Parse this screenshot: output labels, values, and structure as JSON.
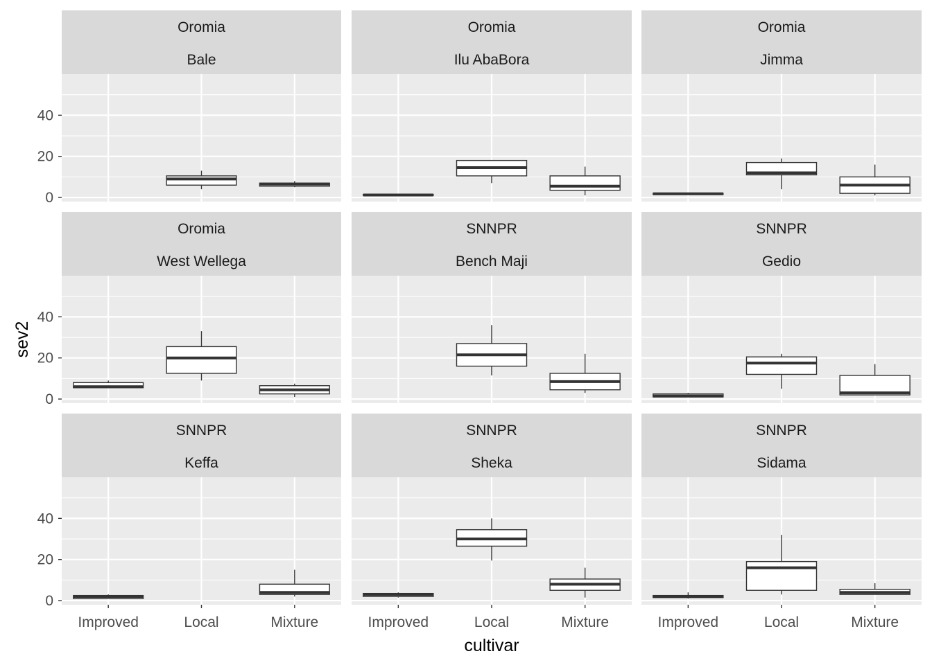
{
  "chart_data": {
    "type": "boxplot",
    "xlabel": "cultivar",
    "ylabel": "sev2",
    "categories": [
      "Improved",
      "Local",
      "Mixture"
    ],
    "y_ticks": [
      0,
      20,
      40
    ],
    "ylim": [
      -2,
      60
    ],
    "grid": true,
    "colors": {
      "panel_bg": "#EBEBEB",
      "strip_bg": "#D9D9D9",
      "grid_major": "#FFFFFF",
      "box_fill": "#FFFFFF",
      "box_line": "#333333",
      "tick_text": "#4D4D4D"
    },
    "panels": [
      {
        "region": "Oromia",
        "zone": "Bale",
        "boxes": [
          {
            "cultivar": "Local",
            "min": 4,
            "q1": 6,
            "median": 9,
            "q3": 10.5,
            "max": 13
          },
          {
            "cultivar": "Mixture",
            "min": 5,
            "q1": 5.5,
            "median": 6.5,
            "q3": 7,
            "max": 8
          }
        ]
      },
      {
        "region": "Oromia",
        "zone": "Ilu AbaBora",
        "boxes": [
          {
            "cultivar": "Improved",
            "min": 1,
            "q1": 1,
            "median": 1.2,
            "q3": 1.5,
            "max": 1.5
          },
          {
            "cultivar": "Local",
            "min": 7,
            "q1": 10.5,
            "median": 14.5,
            "q3": 18,
            "max": 18
          },
          {
            "cultivar": "Mixture",
            "min": 1,
            "q1": 3.5,
            "median": 5.5,
            "q3": 10.5,
            "max": 15
          }
        ]
      },
      {
        "region": "Oromia",
        "zone": "Jimma",
        "boxes": [
          {
            "cultivar": "Improved",
            "min": 1.5,
            "q1": 1.5,
            "median": 1.8,
            "q3": 2,
            "max": 2
          },
          {
            "cultivar": "Local",
            "min": 4,
            "q1": 11,
            "median": 12,
            "q3": 17,
            "max": 19
          },
          {
            "cultivar": "Mixture",
            "min": 1,
            "q1": 2,
            "median": 6,
            "q3": 10,
            "max": 16
          }
        ]
      },
      {
        "region": "Oromia",
        "zone": "West Wellega",
        "boxes": [
          {
            "cultivar": "Improved",
            "min": 5.5,
            "q1": 5.5,
            "median": 6,
            "q3": 8,
            "max": 9
          },
          {
            "cultivar": "Local",
            "min": 9,
            "q1": 12.5,
            "median": 20,
            "q3": 25.5,
            "max": 33
          },
          {
            "cultivar": "Mixture",
            "min": 1,
            "q1": 2.5,
            "median": 4.5,
            "q3": 6.5,
            "max": 7.5
          }
        ]
      },
      {
        "region": "SNNPR",
        "zone": "Bench Maji",
        "boxes": [
          {
            "cultivar": "Local",
            "min": 11.5,
            "q1": 16,
            "median": 21.5,
            "q3": 27,
            "max": 36
          },
          {
            "cultivar": "Mixture",
            "min": 3,
            "q1": 4.5,
            "median": 8.5,
            "q3": 12.5,
            "max": 22
          }
        ]
      },
      {
        "region": "SNNPR",
        "zone": "Gedio",
        "boxes": [
          {
            "cultivar": "Improved",
            "min": 1,
            "q1": 1,
            "median": 1.5,
            "q3": 2.5,
            "max": 3
          },
          {
            "cultivar": "Local",
            "min": 5,
            "q1": 12,
            "median": 17.5,
            "q3": 20.5,
            "max": 22
          },
          {
            "cultivar": "Mixture",
            "min": 2,
            "q1": 2,
            "median": 3,
            "q3": 11.5,
            "max": 17
          }
        ]
      },
      {
        "region": "SNNPR",
        "zone": "Keffa",
        "boxes": [
          {
            "cultivar": "Improved",
            "min": 1,
            "q1": 1,
            "median": 2,
            "q3": 2.5,
            "max": 3
          },
          {
            "cultivar": "Mixture",
            "min": 2,
            "q1": 3,
            "median": 4,
            "q3": 8,
            "max": 15
          }
        ]
      },
      {
        "region": "SNNPR",
        "zone": "Sheka",
        "boxes": [
          {
            "cultivar": "Improved",
            "min": 1.5,
            "q1": 2,
            "median": 3,
            "q3": 3.5,
            "max": 4
          },
          {
            "cultivar": "Local",
            "min": 19.5,
            "q1": 26.5,
            "median": 30,
            "q3": 34.5,
            "max": 40
          },
          {
            "cultivar": "Mixture",
            "min": 1.5,
            "q1": 5,
            "median": 8,
            "q3": 10.5,
            "max": 16
          }
        ]
      },
      {
        "region": "SNNPR",
        "zone": "Sidama",
        "boxes": [
          {
            "cultivar": "Improved",
            "min": 1,
            "q1": 1.5,
            "median": 2,
            "q3": 2.5,
            "max": 4
          },
          {
            "cultivar": "Local",
            "min": 3,
            "q1": 5,
            "median": 16,
            "q3": 19,
            "max": 32
          },
          {
            "cultivar": "Mixture",
            "min": 3,
            "q1": 3,
            "median": 4,
            "q3": 5.5,
            "max": 8.5
          }
        ]
      }
    ]
  }
}
